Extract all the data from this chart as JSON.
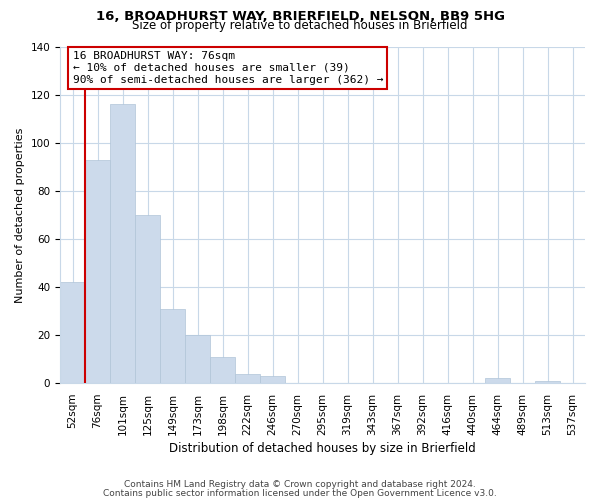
{
  "title1": "16, BROADHURST WAY, BRIERFIELD, NELSON, BB9 5HG",
  "title2": "Size of property relative to detached houses in Brierfield",
  "xlabel": "Distribution of detached houses by size in Brierfield",
  "ylabel": "Number of detached properties",
  "bar_color": "#ccdaeb",
  "bar_edge_color": "#b0c4d8",
  "categories": [
    "52sqm",
    "76sqm",
    "101sqm",
    "125sqm",
    "149sqm",
    "173sqm",
    "198sqm",
    "222sqm",
    "246sqm",
    "270sqm",
    "295sqm",
    "319sqm",
    "343sqm",
    "367sqm",
    "392sqm",
    "416sqm",
    "440sqm",
    "464sqm",
    "489sqm",
    "513sqm",
    "537sqm"
  ],
  "values": [
    42,
    93,
    116,
    70,
    31,
    20,
    11,
    4,
    3,
    0,
    0,
    0,
    0,
    0,
    0,
    0,
    0,
    2,
    0,
    1,
    0
  ],
  "ylim": [
    0,
    140
  ],
  "yticks": [
    0,
    20,
    40,
    60,
    80,
    100,
    120,
    140
  ],
  "property_line_x": 1,
  "annotation_box_text": "16 BROADHURST WAY: 76sqm\n← 10% of detached houses are smaller (39)\n90% of semi-detached houses are larger (362) →",
  "annotation_box_color": "#ffffff",
  "annotation_box_edge_color": "#cc0000",
  "property_line_color": "#cc0000",
  "footnote1": "Contains HM Land Registry data © Crown copyright and database right 2024.",
  "footnote2": "Contains public sector information licensed under the Open Government Licence v3.0.",
  "background_color": "#ffffff",
  "grid_color": "#c8d8e8",
  "title1_fontsize": 9.5,
  "title2_fontsize": 8.5,
  "ylabel_fontsize": 8,
  "xlabel_fontsize": 8.5,
  "tick_fontsize": 7.5,
  "footnote_fontsize": 6.5
}
